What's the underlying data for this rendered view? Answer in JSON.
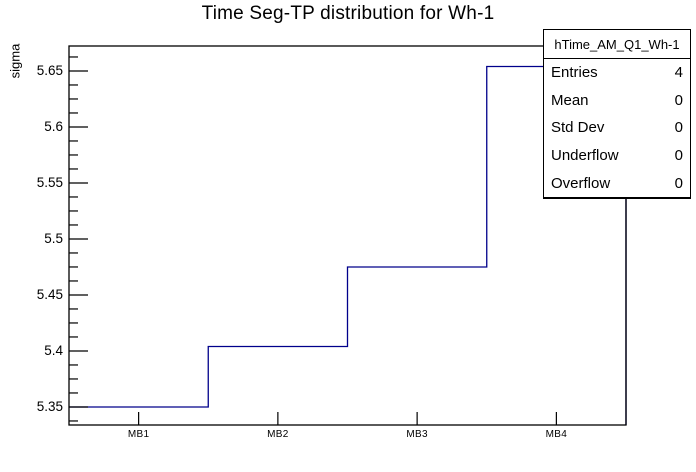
{
  "chart_data": {
    "type": "line",
    "subtype": "step-histogram",
    "title": "Time Seg-TP distribution for Wh-1",
    "xlabel": "",
    "ylabel": "sigma",
    "categories": [
      "MB1",
      "MB2",
      "MB3",
      "MB4"
    ],
    "values": [
      5.35,
      5.404,
      5.475,
      5.654
    ],
    "ylim": [
      5.3339,
      5.6723
    ],
    "yticks_major": [
      5.65,
      5.6,
      5.55,
      5.5,
      5.45,
      5.4,
      5.35
    ],
    "ytick_labels": [
      "5.65",
      "5.6",
      "5.55",
      "5.5",
      "5.45",
      "5.4",
      "5.35"
    ],
    "yminor_step": 0.0125,
    "grid": false,
    "legend_position": "top-right-stats-box",
    "line_color": "#00008b",
    "frame_color": "#000000",
    "background_color": "#ffffff",
    "stats_box": {
      "title": "hTime_AM_Q1_Wh-1",
      "rows": [
        {
          "label": "Entries",
          "value": "4"
        },
        {
          "label": "Mean",
          "value": "0"
        },
        {
          "label": "Std Dev",
          "value": "0"
        },
        {
          "label": "Underflow",
          "value": "0"
        },
        {
          "label": "Overflow",
          "value": "0"
        }
      ]
    }
  }
}
